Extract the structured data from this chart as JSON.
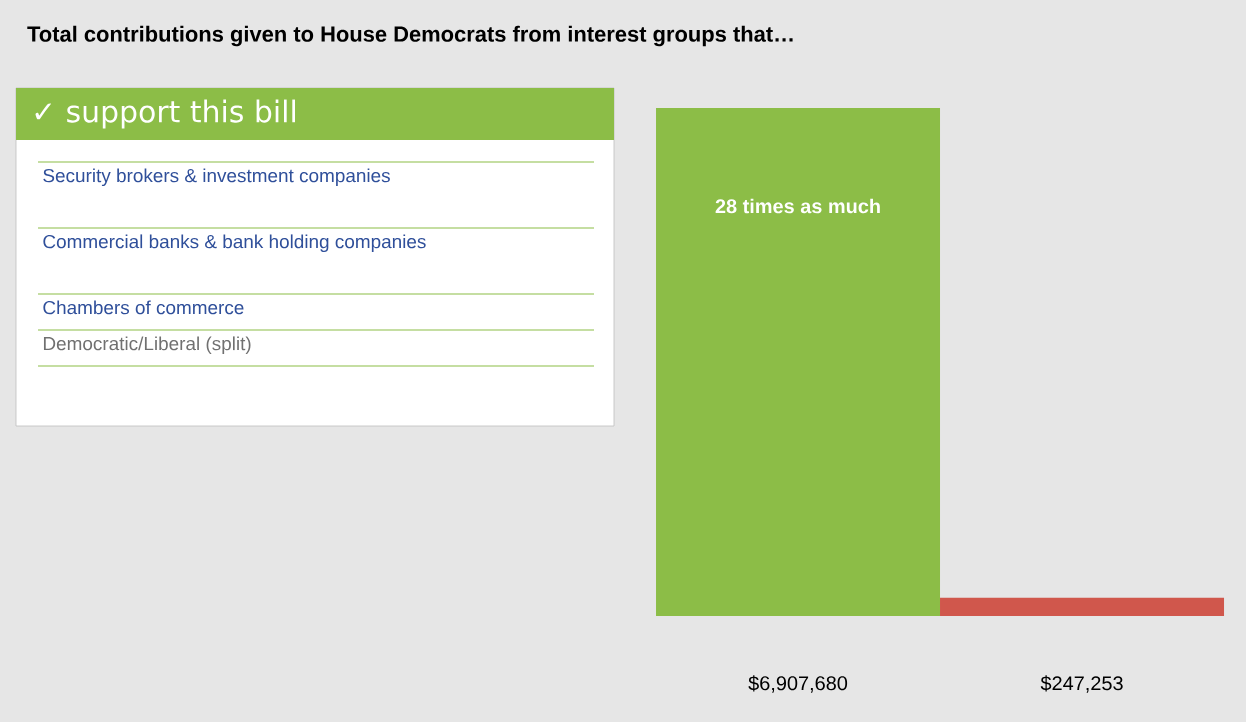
{
  "chart_data": {
    "type": "bar",
    "title": "Total contributions given to House Democrats from interest groups that…",
    "categories": [
      null,
      null
    ],
    "values": [
      6907680,
      247253
    ],
    "colors": [
      "#8cbd47",
      "#d0574c"
    ],
    "value_labels": [
      "$6,907,680",
      "$247,253"
    ],
    "legend_title": "✓ support this bill",
    "annotations": [
      "Security brokers & investment companies",
      "Commercial banks & bank holding companies",
      "Chambers of commerce",
      "Democratic/Liberal (split)",
      "28 times as much"
    ]
  }
}
